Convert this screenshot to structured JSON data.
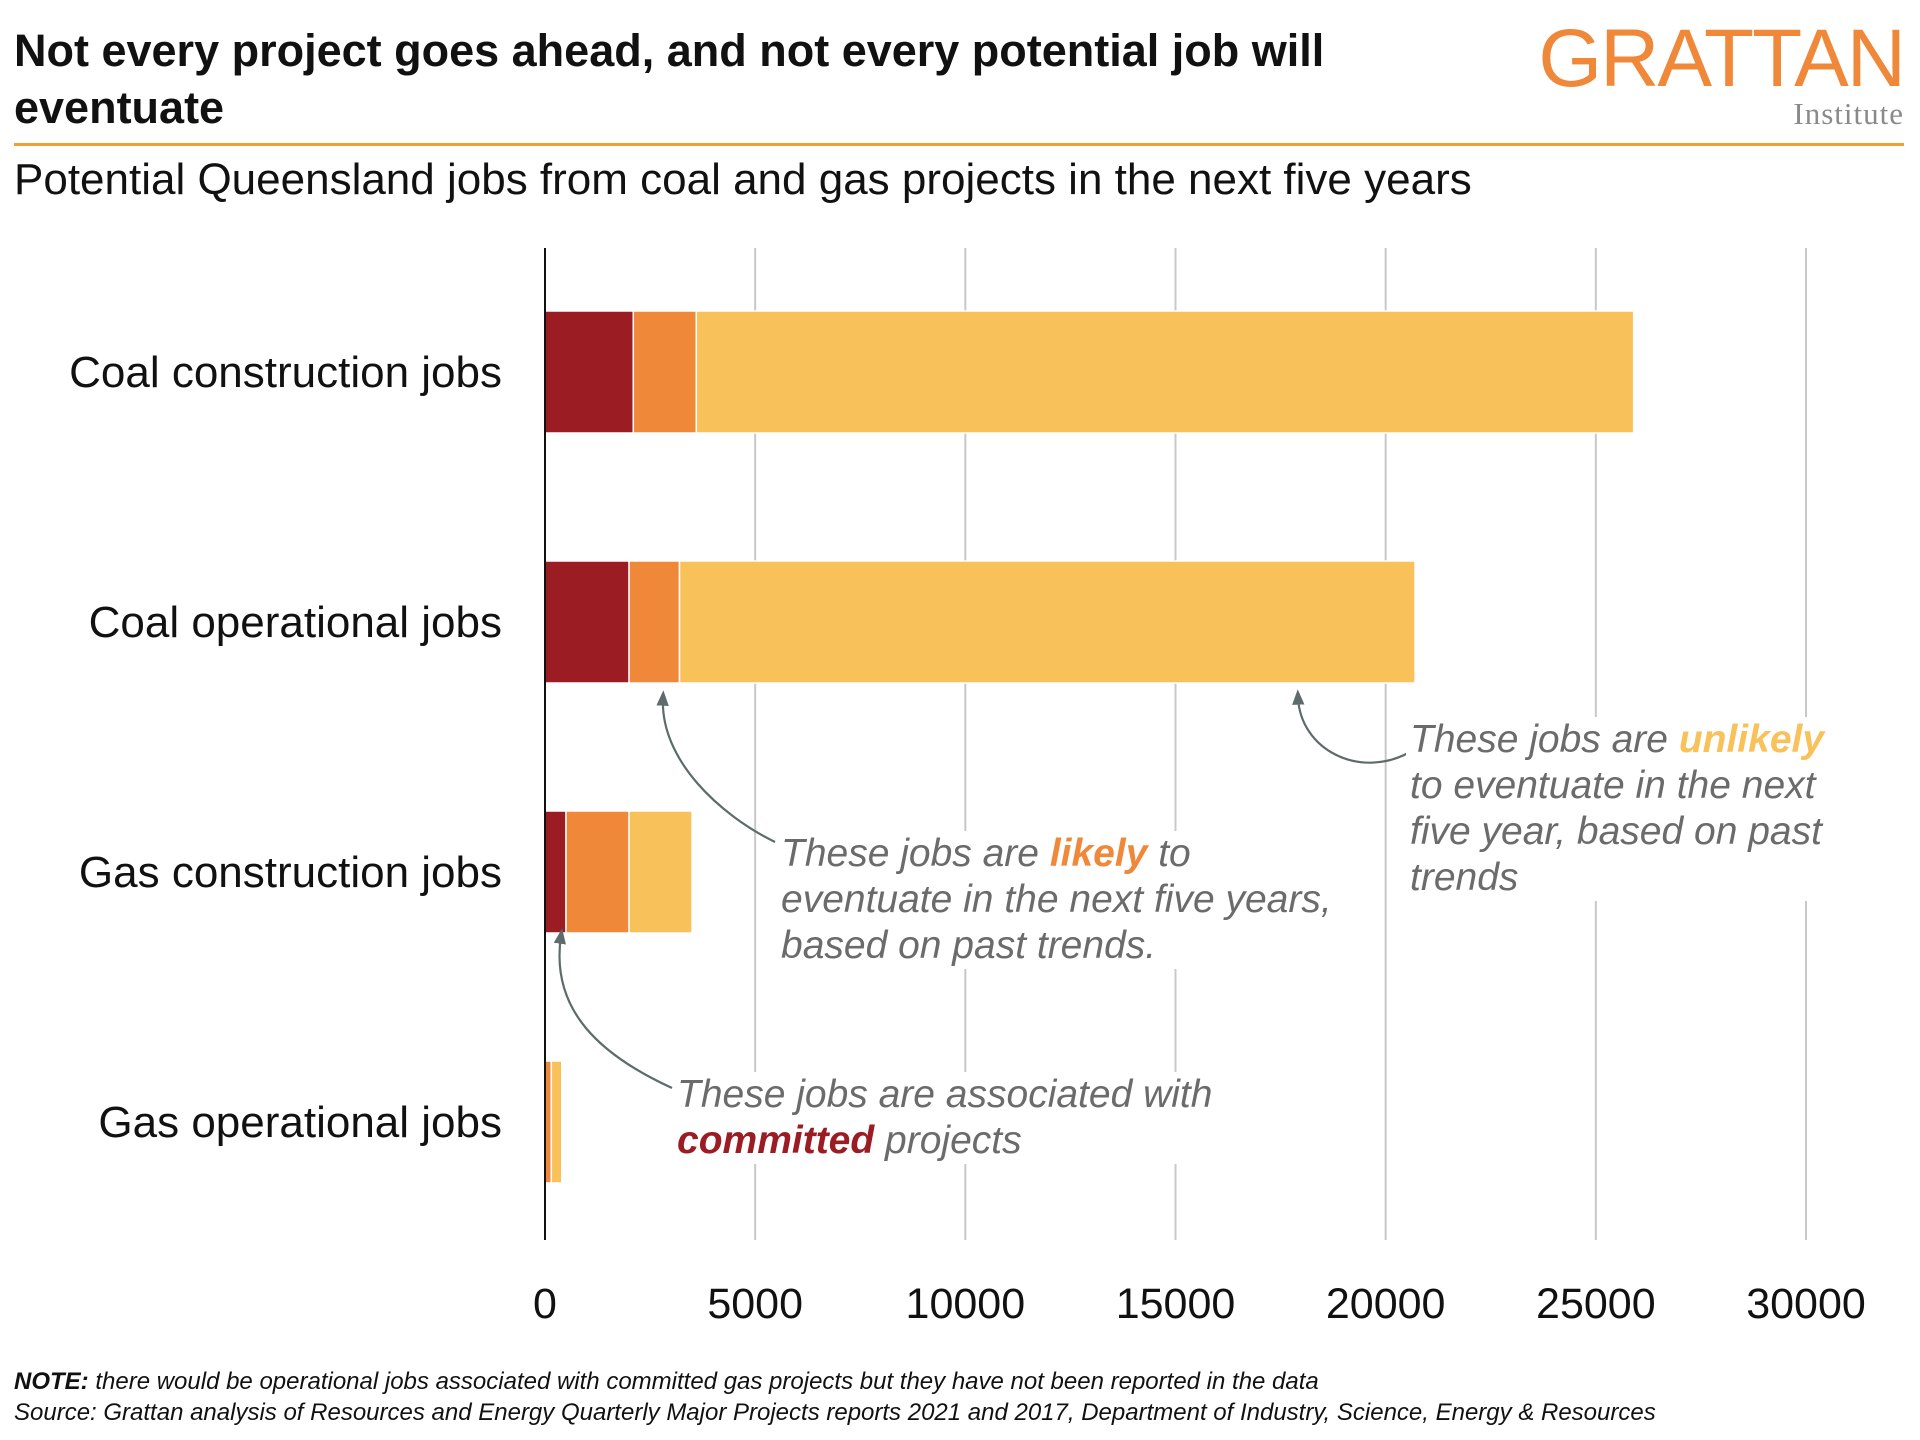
{
  "header": {
    "title": "Not every project goes ahead, and not every potential job will eventuate",
    "logo_main": "GRATTAN",
    "logo_sub": "Institute",
    "subtitle": "Potential Queensland jobs from coal and gas projects in the next five years"
  },
  "colors": {
    "committed": "#9B1C23",
    "likely": "#F0883A",
    "unlikely": "#F9C15A",
    "accent_rule": "#F0A033",
    "annotation_text": "#6b6b6b",
    "gridline": "#c8c8c8"
  },
  "chart_data": {
    "type": "bar",
    "orientation": "horizontal",
    "stacked": true,
    "title": "Potential Queensland jobs from coal and gas projects in the next five years",
    "xlabel": "",
    "ylabel": "",
    "xlim": [
      0,
      30000
    ],
    "xticks": [
      0,
      5000,
      10000,
      15000,
      20000,
      25000,
      30000
    ],
    "grid": true,
    "categories": [
      "Coal construction jobs",
      "Coal operational jobs",
      "Gas construction jobs",
      "Gas operational jobs"
    ],
    "series": [
      {
        "name": "Committed",
        "color": "#9B1C23",
        "values": [
          2100,
          2000,
          500,
          0
        ]
      },
      {
        "name": "Likely",
        "color": "#F0883A",
        "values": [
          1500,
          1200,
          1500,
          150
        ]
      },
      {
        "name": "Unlikely",
        "color": "#F9C15A",
        "values": [
          22300,
          17500,
          1500,
          250
        ]
      }
    ]
  },
  "annotations": {
    "likely": {
      "before": "These jobs are ",
      "highlight": "likely",
      "after": " to eventuate in the next five years, based on past trends."
    },
    "unlikely": {
      "before": "These jobs are ",
      "highlight": "unlikely",
      "after": " to eventuate in the next five year, based on past trends"
    },
    "committed": {
      "before": "These jobs are associated with ",
      "highlight": "committed",
      "after": " projects"
    }
  },
  "footer": {
    "note_label": "NOTE:",
    "note_text": " there would be operational jobs associated with committed gas projects but they have not been reported in the data",
    "source": "Source: Grattan analysis of Resources and Energy Quarterly Major Projects reports 2021 and 2017, Department of Industry, Science, Energy & Resources"
  }
}
